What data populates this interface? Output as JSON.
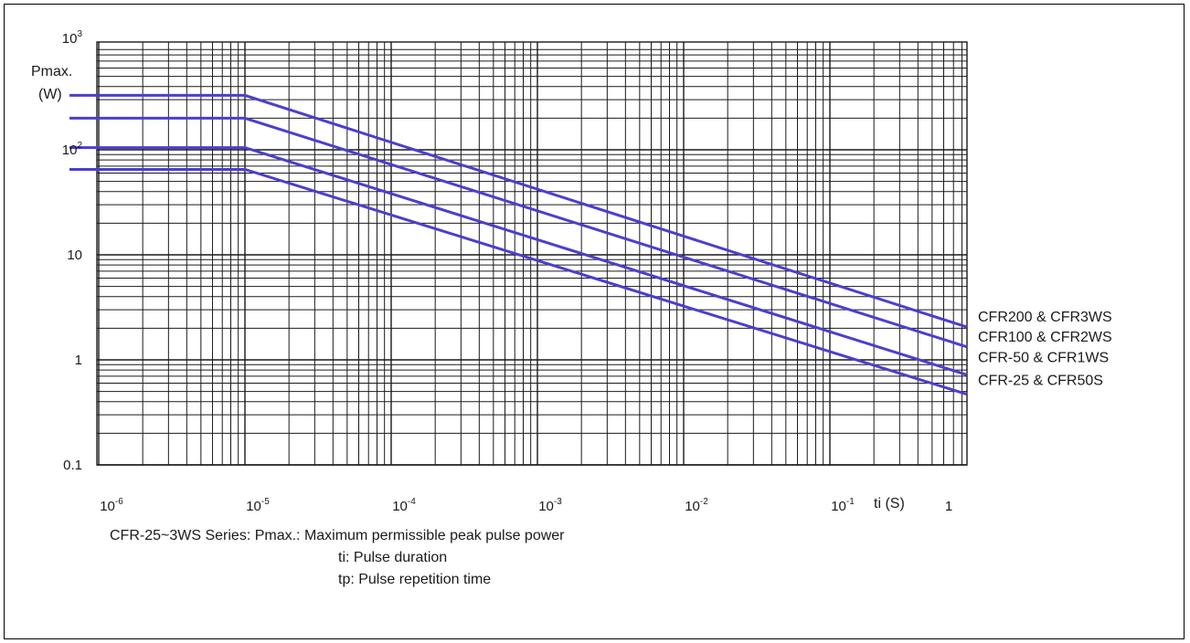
{
  "chart_data": {
    "type": "line",
    "x_scale": "log",
    "y_scale": "log",
    "xlim": [
      6e-07,
      1
    ],
    "ylim": [
      0.1,
      1000
    ],
    "grid": true,
    "y_unit_label": [
      "Pmax.",
      "(W)"
    ],
    "x_unit_label": "ti (S)",
    "x_ticks": [
      {
        "base": "10",
        "exp": "-6",
        "value": 1e-06
      },
      {
        "base": "10",
        "exp": "-5",
        "value": 1e-05
      },
      {
        "base": "10",
        "exp": "-4",
        "value": 0.0001
      },
      {
        "base": "10",
        "exp": "-3",
        "value": 0.001
      },
      {
        "base": "10",
        "exp": "-2",
        "value": 0.01
      },
      {
        "base": "10",
        "exp": "-1",
        "value": 0.1
      },
      {
        "base": "1",
        "exp": "",
        "value": 1
      }
    ],
    "y_ticks": [
      {
        "base": "10",
        "exp": "3",
        "value": 1000
      },
      {
        "base": "10",
        "exp": "2",
        "value": 100
      },
      {
        "base": "10",
        "exp": "",
        "value": 10
      },
      {
        "base": "1",
        "exp": "",
        "value": 1
      },
      {
        "base": "0.1",
        "exp": "",
        "value": 0.1
      }
    ],
    "series": [
      {
        "name": "CFR200 & CFR3WS",
        "x": [
          6e-07,
          1e-05,
          1
        ],
        "y": [
          330,
          330,
          2.05
        ]
      },
      {
        "name": "CFR100 & CFR2WS",
        "x": [
          6e-07,
          1e-05,
          1
        ],
        "y": [
          200,
          200,
          1.33
        ]
      },
      {
        "name": "CFR-50 & CFR1WS",
        "x": [
          6e-07,
          1e-05,
          1
        ],
        "y": [
          105,
          105,
          0.72
        ]
      },
      {
        "name": "CFR-25 & CFR50S",
        "x": [
          6e-07,
          1e-05,
          1
        ],
        "y": [
          65,
          65,
          0.47
        ]
      }
    ],
    "line_color": "#4a3fcf"
  },
  "caption": {
    "main": "CFR-25~3WS Series: Pmax.: Maximum permissible peak pulse power",
    "ti": "ti: Pulse duration",
    "tp": "tp: Pulse repetition time"
  }
}
